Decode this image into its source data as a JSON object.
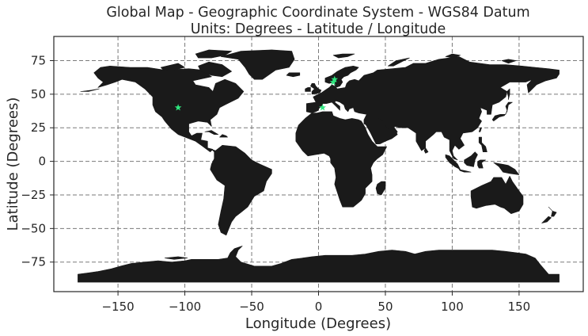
{
  "chart_data": {
    "type": "scatter",
    "title_line1": "Global Map - Geographic Coordinate System - WGS84 Datum",
    "title_line2": "Units: Degrees - Latitude / Longitude",
    "xlabel": "Longitude (Degrees)",
    "ylabel": "Latitude (Degrees)",
    "xlim": [
      -198,
      198
    ],
    "ylim": [
      -97,
      93
    ],
    "xticks": [
      -150,
      -100,
      -50,
      0,
      50,
      100,
      150
    ],
    "yticks": [
      75,
      50,
      25,
      0,
      -25,
      -50,
      -75
    ],
    "grid": true,
    "marker": "star",
    "points": [
      {
        "x": -105,
        "y": 40
      },
      {
        "x": 3,
        "y": 40
      },
      {
        "x": 11,
        "y": 59
      },
      {
        "x": 12,
        "y": 61
      }
    ],
    "colors": {
      "land": "#1a1a1a",
      "marker": "#2ee67e",
      "grid": "#7a7a7a"
    }
  }
}
